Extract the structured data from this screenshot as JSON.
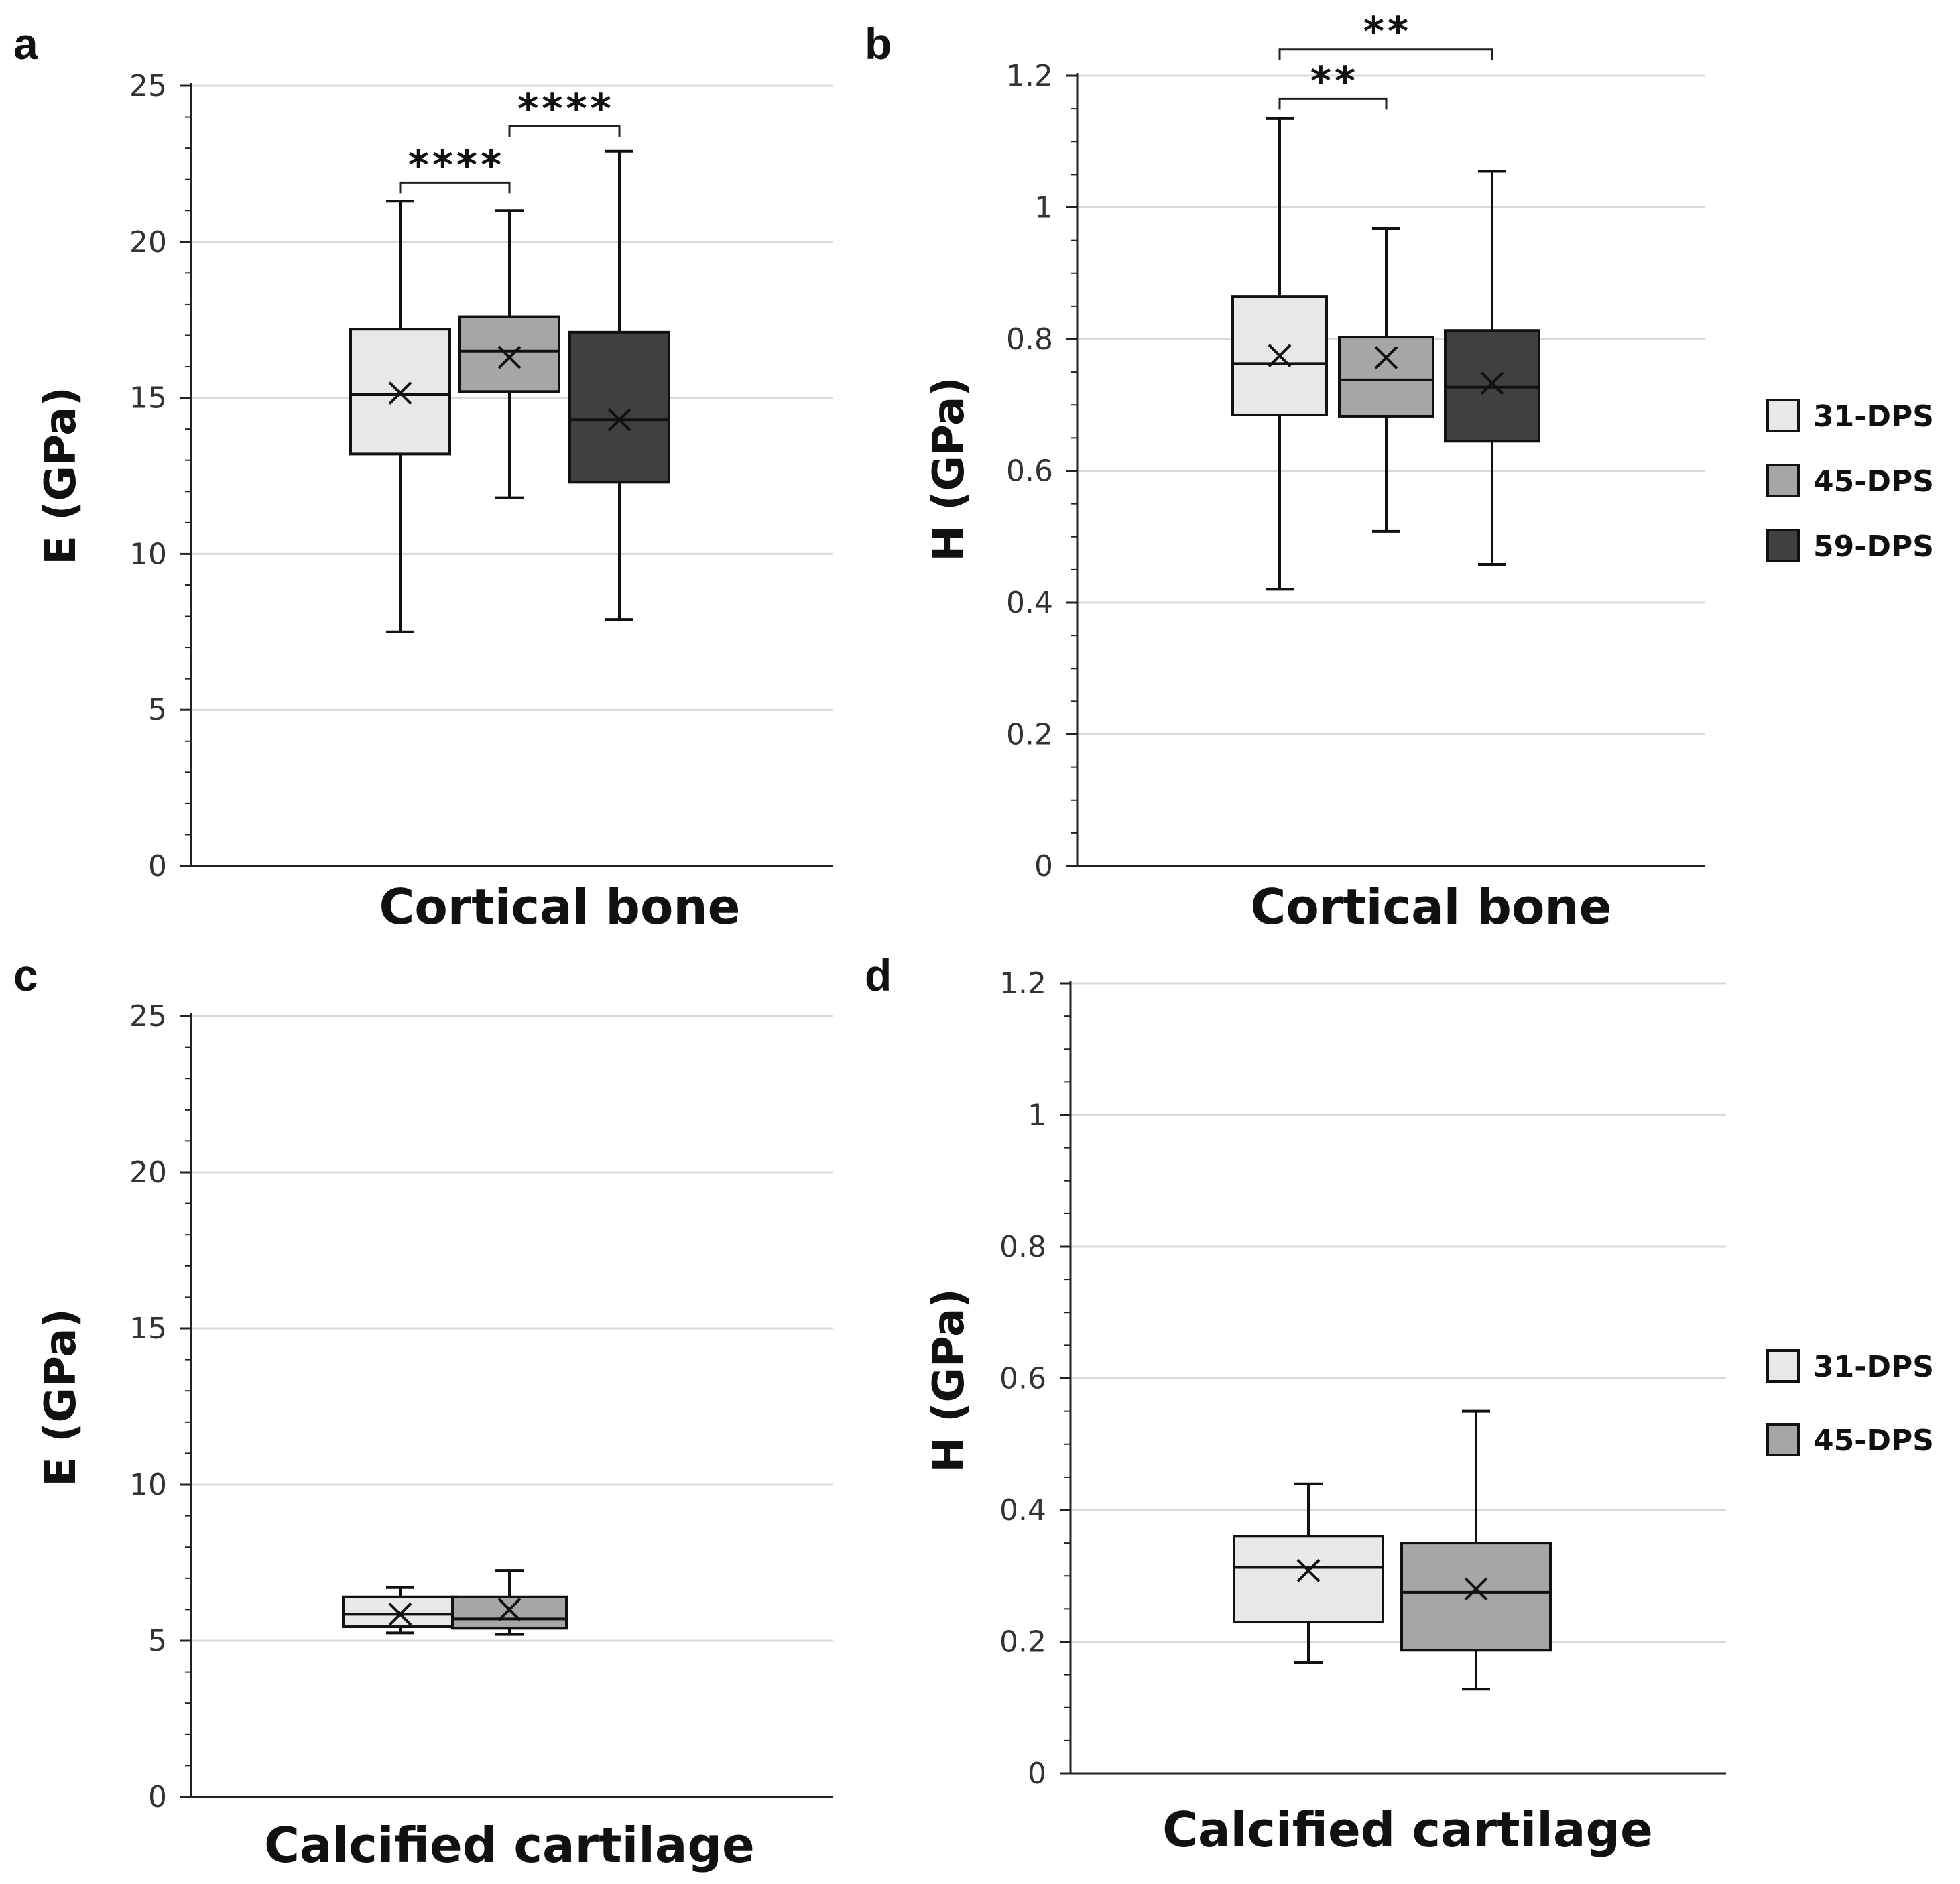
{
  "chart_data": [
    {
      "panel": "a",
      "type": "box",
      "xlabel": "Cortical bone",
      "ylabel": "E (GPa)",
      "ylim": [
        0,
        25
      ],
      "ytick_values": [
        0,
        5,
        10,
        15,
        20,
        25
      ],
      "ytick_labels": [
        "0",
        "5",
        "10",
        "15",
        "20",
        "25"
      ],
      "minor_tick_step": 1,
      "grid": true,
      "legend": [],
      "series": [
        {
          "name": "31-DPS",
          "min": 7.5,
          "q1": 13.2,
          "median": 15.1,
          "q3": 17.2,
          "max": 21.3,
          "mean": 15.15,
          "color": "#e8e8e8"
        },
        {
          "name": "45-DPS",
          "min": 11.8,
          "q1": 15.2,
          "median": 16.5,
          "q3": 17.6,
          "max": 21.0,
          "mean": 16.3,
          "color": "#a6a6a6"
        },
        {
          "name": "59-DPS",
          "min": 7.9,
          "q1": 12.3,
          "median": 14.3,
          "q3": 17.1,
          "max": 22.9,
          "mean": 14.3,
          "color": "#404040"
        }
      ],
      "significance": [
        {
          "from": 0,
          "to": 1,
          "label": "****",
          "y": 21.9
        },
        {
          "from": 1,
          "to": 2,
          "label": "****",
          "y": 23.7
        }
      ]
    },
    {
      "panel": "b",
      "type": "box",
      "xlabel": "Cortical bone",
      "ylabel": "H (GPa)",
      "ylim": [
        0,
        1.2
      ],
      "ytick_values": [
        0,
        0.2,
        0.4,
        0.6,
        0.8,
        1,
        1.2
      ],
      "ytick_labels": [
        "0",
        "0.2",
        "0.4",
        "0.6",
        "0.8",
        "1",
        "1.2"
      ],
      "minor_tick_step": 0.05,
      "grid": true,
      "legend": [
        {
          "label": "31-DPS",
          "color": "#e8e8e8"
        },
        {
          "label": "45-DPS",
          "color": "#a6a6a6"
        },
        {
          "label": "59-DPS",
          "color": "#404040"
        }
      ],
      "series": [
        {
          "name": "31-DPS",
          "min": 0.42,
          "q1": 0.685,
          "median": 0.763,
          "q3": 0.865,
          "max": 1.135,
          "mean": 0.775,
          "color": "#e8e8e8"
        },
        {
          "name": "45-DPS",
          "min": 0.508,
          "q1": 0.683,
          "median": 0.738,
          "q3": 0.803,
          "max": 0.968,
          "mean": 0.772,
          "color": "#a6a6a6"
        },
        {
          "name": "59-DPS",
          "min": 0.458,
          "q1": 0.645,
          "median": 0.727,
          "q3": 0.813,
          "max": 1.055,
          "mean": 0.733,
          "color": "#404040"
        }
      ],
      "significance": [
        {
          "from": 0,
          "to": 1,
          "label": "**",
          "y": 1.165
        },
        {
          "from": 0,
          "to": 2,
          "label": "**",
          "y": 1.24
        }
      ]
    },
    {
      "panel": "c",
      "type": "box",
      "xlabel": "Calcified cartilage",
      "ylabel": "E (GPa)",
      "ylim": [
        0,
        25
      ],
      "ytick_values": [
        0,
        5,
        10,
        15,
        20,
        25
      ],
      "ytick_labels": [
        "0",
        "5",
        "10",
        "15",
        "20",
        "25"
      ],
      "minor_tick_step": 1,
      "grid": true,
      "legend": [],
      "series": [
        {
          "name": "31-DPS",
          "min": 5.25,
          "q1": 5.45,
          "median": 5.85,
          "q3": 6.4,
          "max": 6.7,
          "mean": 5.85,
          "color": "#e8e8e8"
        },
        {
          "name": "45-DPS",
          "min": 5.2,
          "q1": 5.4,
          "median": 5.7,
          "q3": 6.4,
          "max": 7.25,
          "mean": 6.0,
          "color": "#a6a6a6"
        }
      ],
      "significance": []
    },
    {
      "panel": "d",
      "type": "box",
      "xlabel": "Calcified cartilage",
      "ylabel": "H (GPa)",
      "ylim": [
        0,
        1.2
      ],
      "ytick_values": [
        0,
        0.2,
        0.4,
        0.6,
        0.8,
        1,
        1.2
      ],
      "ytick_labels": [
        "0",
        "0.2",
        "0.4",
        "0.6",
        "0.8",
        "1",
        "1.2"
      ],
      "minor_tick_step": 0.05,
      "grid": true,
      "legend": [
        {
          "label": "31-DPS",
          "color": "#e8e8e8"
        },
        {
          "label": "45-DPS",
          "color": "#a6a6a6"
        }
      ],
      "series": [
        {
          "name": "31-DPS",
          "min": 0.168,
          "q1": 0.23,
          "median": 0.313,
          "q3": 0.36,
          "max": 0.44,
          "mean": 0.308,
          "color": "#e8e8e8"
        },
        {
          "name": "45-DPS",
          "min": 0.128,
          "q1": 0.187,
          "median": 0.275,
          "q3": 0.35,
          "max": 0.55,
          "mean": 0.28,
          "color": "#a6a6a6"
        }
      ],
      "significance": []
    }
  ]
}
